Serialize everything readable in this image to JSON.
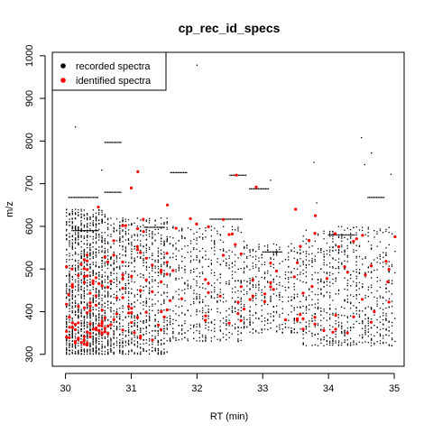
{
  "chart_data": {
    "type": "scatter",
    "title": "cp_rec_id_specs",
    "xlabel": "RT (min)",
    "ylabel": "m/z",
    "xlim": [
      29.8,
      35.15
    ],
    "ylim": [
      272,
      1008
    ],
    "xticks": [
      30,
      31,
      32,
      33,
      34,
      35
    ],
    "yticks": [
      300,
      400,
      500,
      600,
      700,
      800,
      900,
      1000
    ],
    "grid": false,
    "legend_position": "top-left",
    "series": [
      {
        "name": "recorded spectra",
        "color": "#000000",
        "clusters": [
          {
            "x": [
              30.0,
              30.6
            ],
            "y": [
              300,
              640
            ],
            "n": 1100
          },
          {
            "x": [
              30.6,
              31.55
            ],
            "y": [
              300,
              620
            ],
            "n": 900
          },
          {
            "x": [
              31.55,
              32.7
            ],
            "y": [
              330,
              600
            ],
            "n": 500
          },
          {
            "x": [
              32.7,
              33.6
            ],
            "y": [
              350,
              560
            ],
            "n": 350
          },
          {
            "x": [
              33.6,
              35.0
            ],
            "y": [
              320,
              600
            ],
            "n": 700
          }
        ],
        "bands": [
          {
            "x": [
              30.6,
              30.85
            ],
            "y": 797
          },
          {
            "x": [
              31.6,
              31.85
            ],
            "y": 726
          },
          {
            "x": [
              32.5,
              32.75
            ],
            "y": 720
          },
          {
            "x": [
              32.8,
              33.1
            ],
            "y": 688
          },
          {
            "x": [
              30.6,
              30.85
            ],
            "y": 680
          },
          {
            "x": [
              30.05,
              30.5
            ],
            "y": 668
          },
          {
            "x": [
              31.2,
              31.5
            ],
            "y": 598
          },
          {
            "x": [
              32.2,
              32.7
            ],
            "y": 617
          },
          {
            "x": [
              33.0,
              33.3
            ],
            "y": 540
          },
          {
            "x": [
              34.0,
              34.4
            ],
            "y": 580
          },
          {
            "x": [
              34.6,
              34.85
            ],
            "y": 668
          },
          {
            "x": [
              30.1,
              30.5
            ],
            "y": 590
          }
        ],
        "points": [
          {
            "x": 32.0,
            "y": 978
          },
          {
            "x": 30.15,
            "y": 833
          },
          {
            "x": 34.5,
            "y": 808
          },
          {
            "x": 34.65,
            "y": 772
          },
          {
            "x": 33.78,
            "y": 750
          },
          {
            "x": 34.55,
            "y": 745
          },
          {
            "x": 34.95,
            "y": 722
          },
          {
            "x": 30.55,
            "y": 732
          },
          {
            "x": 33.12,
            "y": 708
          },
          {
            "x": 33.82,
            "y": 655
          }
        ]
      },
      {
        "name": "identified spectra",
        "color": "#ff0000",
        "clusters": [
          {
            "x": [
              30.0,
              30.6
            ],
            "y": [
              320,
              540
            ],
            "n": 70
          },
          {
            "x": [
              30.6,
              31.55
            ],
            "y": [
              330,
              620
            ],
            "n": 50
          },
          {
            "x": [
              31.55,
              32.7
            ],
            "y": [
              370,
              620
            ],
            "n": 25
          },
          {
            "x": [
              32.7,
              33.6
            ],
            "y": [
              380,
              560
            ],
            "n": 18
          },
          {
            "x": [
              33.6,
              35.0
            ],
            "y": [
              350,
              590
            ],
            "n": 30
          }
        ],
        "points": [
          {
            "x": 31.1,
            "y": 728
          },
          {
            "x": 31.0,
            "y": 690
          },
          {
            "x": 32.6,
            "y": 720
          },
          {
            "x": 32.9,
            "y": 692
          },
          {
            "x": 31.55,
            "y": 650
          },
          {
            "x": 33.5,
            "y": 640
          },
          {
            "x": 33.8,
            "y": 625
          },
          {
            "x": 31.9,
            "y": 618
          },
          {
            "x": 32.4,
            "y": 616
          },
          {
            "x": 30.5,
            "y": 645
          },
          {
            "x": 34.1,
            "y": 583
          },
          {
            "x": 30.1,
            "y": 500
          },
          {
            "x": 30.05,
            "y": 440
          },
          {
            "x": 34.9,
            "y": 470
          }
        ]
      }
    ]
  }
}
